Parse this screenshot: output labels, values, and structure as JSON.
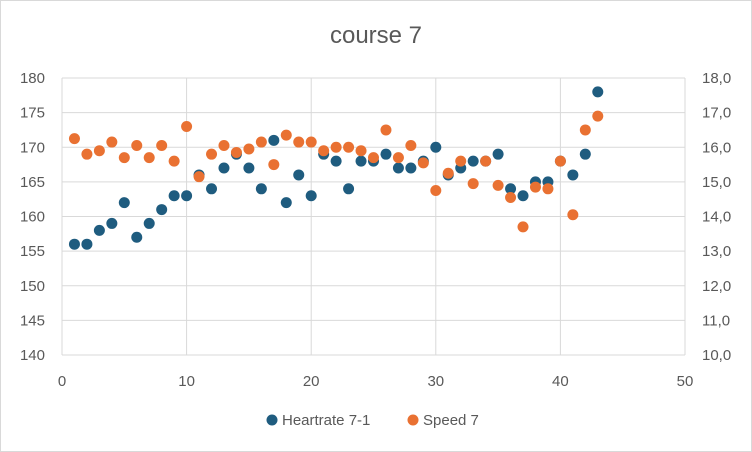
{
  "chart_data": {
    "type": "scatter",
    "title": "course 7",
    "xlabel": "",
    "ylabel": "",
    "xlim": [
      0,
      50
    ],
    "ylim": [
      140,
      180
    ],
    "y2lim": [
      10.0,
      18.0
    ],
    "x_ticks": [
      "0",
      "10",
      "20",
      "30",
      "40",
      "50"
    ],
    "y_ticks": [
      "140",
      "145",
      "150",
      "155",
      "160",
      "165",
      "170",
      "175",
      "180"
    ],
    "y2_ticks": [
      "10,0",
      "11,0",
      "12,0",
      "13,0",
      "14,0",
      "15,0",
      "16,0",
      "17,0",
      "18,0"
    ],
    "grid": true,
    "legend_position": "bottom",
    "series": [
      {
        "name": "Heartrate 7-1",
        "axis": "left",
        "color": "#1f5c7f",
        "x": [
          1,
          2,
          3,
          4,
          5,
          6,
          7,
          8,
          9,
          10,
          11,
          12,
          13,
          14,
          15,
          16,
          17,
          18,
          19,
          20,
          21,
          22,
          23,
          24,
          25,
          26,
          27,
          28,
          29,
          30,
          31,
          32,
          33,
          34,
          35,
          36,
          37,
          38,
          39,
          40,
          41,
          42,
          43
        ],
        "y": [
          156,
          156,
          158,
          159,
          162,
          157,
          159,
          161,
          163,
          163,
          166,
          164,
          167,
          169,
          167,
          164,
          171,
          162,
          166,
          163,
          169,
          168,
          164,
          168,
          168,
          169,
          167,
          167,
          168,
          170,
          166,
          167,
          168,
          168,
          169,
          164,
          163,
          165,
          165,
          168,
          166,
          169,
          178
        ]
      },
      {
        "name": "Speed 7",
        "axis": "right",
        "color": "#e97132",
        "x": [
          1,
          2,
          3,
          4,
          5,
          6,
          7,
          8,
          9,
          10,
          11,
          12,
          13,
          14,
          15,
          16,
          17,
          18,
          19,
          20,
          21,
          22,
          23,
          24,
          25,
          26,
          27,
          28,
          29,
          30,
          31,
          32,
          33,
          34,
          35,
          36,
          37,
          38,
          39,
          40,
          41,
          42,
          43
        ],
        "y": [
          16.25,
          15.8,
          15.9,
          16.15,
          15.7,
          16.05,
          15.7,
          16.05,
          15.6,
          16.6,
          15.15,
          15.8,
          16.05,
          15.85,
          15.95,
          16.15,
          15.5,
          16.35,
          16.15,
          16.15,
          15.9,
          16.0,
          16.0,
          15.9,
          15.7,
          16.5,
          15.7,
          16.05,
          15.55,
          14.75,
          15.25,
          15.6,
          14.95,
          15.6,
          14.9,
          14.55,
          13.7,
          14.85,
          14.8,
          15.6,
          14.05,
          16.5,
          16.9
        ]
      }
    ]
  }
}
